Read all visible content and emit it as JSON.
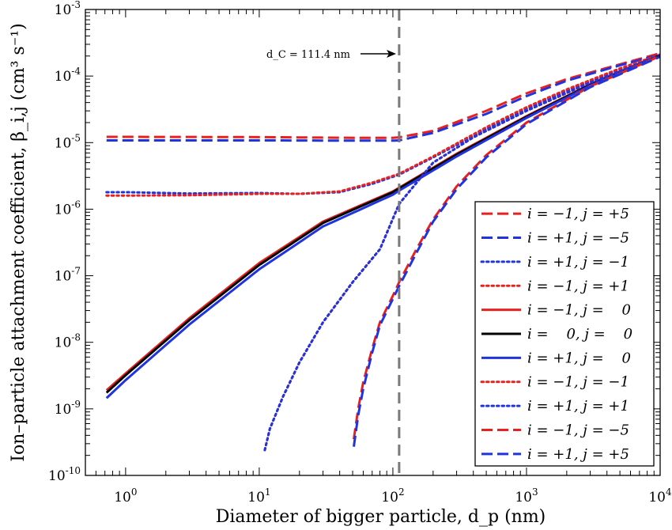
{
  "chart_data": {
    "type": "line",
    "x_scale": "log",
    "y_scale": "log",
    "xlim": [
      0.5,
      10000
    ],
    "ylim": [
      1e-10,
      0.001
    ],
    "xlabel": "Diameter of bigger particle, d_p (nm)",
    "ylabel": "Ion–particle attachment coefficient, β_i,j   (cm³ s⁻¹)",
    "x_ticks": [
      {
        "value": 1,
        "base": "10",
        "exp": "0"
      },
      {
        "value": 10,
        "base": "10",
        "exp": "1"
      },
      {
        "value": 100,
        "base": "10",
        "exp": "2"
      },
      {
        "value": 1000,
        "base": "10",
        "exp": "3"
      },
      {
        "value": 10000,
        "base": "10",
        "exp": "4"
      }
    ],
    "y_ticks": [
      {
        "value": 1e-10,
        "base": "10",
        "exp": "-10"
      },
      {
        "value": 1e-09,
        "base": "10",
        "exp": "-9"
      },
      {
        "value": 1e-08,
        "base": "10",
        "exp": "-8"
      },
      {
        "value": 1e-07,
        "base": "10",
        "exp": "-7"
      },
      {
        "value": 1e-06,
        "base": "10",
        "exp": "-6"
      },
      {
        "value": 1e-05,
        "base": "10",
        "exp": "-5"
      },
      {
        "value": 0.0001,
        "base": "10",
        "exp": "-4"
      },
      {
        "value": 0.001,
        "base": "10",
        "exp": "-3"
      }
    ],
    "grid": false,
    "legend_position": "bottom-right",
    "annotation": {
      "text": "d_C = 111.4 nm",
      "x": 111.4
    },
    "series": [
      {
        "name": "i = −1, j = +5",
        "color": "#e8211f",
        "dash": "dash",
        "x": [
          0.72,
          1,
          10,
          50,
          100,
          111.4,
          200,
          500,
          1000,
          2000,
          5000,
          10000
        ],
        "y": [
          1.22e-05,
          1.22e-05,
          1.21e-05,
          1.18e-05,
          1.18e-05,
          1.2e-05,
          1.5e-05,
          3e-05,
          5.5e-05,
          9e-05,
          0.00015,
          0.00022
        ]
      },
      {
        "name": "i = +1, j = −5",
        "color": "#1f34e0",
        "dash": "dash",
        "x": [
          0.72,
          1,
          10,
          50,
          100,
          111.4,
          200,
          500,
          1000,
          2000,
          5000,
          10000
        ],
        "y": [
          1.08e-05,
          1.08e-05,
          1.08e-05,
          1.07e-05,
          1.07e-05,
          1.08e-05,
          1.4e-05,
          2.7e-05,
          5e-05,
          8.5e-05,
          0.000145,
          0.00021
        ]
      },
      {
        "name": "i = +1, j = −1",
        "color": "#1f34e0",
        "dash": "dot",
        "x": [
          0.72,
          1,
          3,
          10,
          20,
          40,
          70,
          111.4,
          200,
          500,
          1000,
          2000,
          5000,
          10000
        ],
        "y": [
          1.8e-06,
          1.8e-06,
          1.72e-06,
          1.75e-06,
          1.7e-06,
          1.8e-06,
          2.4e-06,
          3.3e-06,
          6e-06,
          1.6e-05,
          3.2e-05,
          6e-05,
          0.000125,
          0.0002
        ]
      },
      {
        "name": "i = −1, j = +1",
        "color": "#e8211f",
        "dash": "dot",
        "x": [
          0.72,
          1,
          3,
          10,
          20,
          40,
          70,
          111.4,
          200,
          500,
          1000,
          2000,
          5000,
          10000
        ],
        "y": [
          1.6e-06,
          1.6e-06,
          1.62e-06,
          1.7e-06,
          1.7e-06,
          1.85e-06,
          2.5e-06,
          3.4e-06,
          6.2e-06,
          1.7e-05,
          3.4e-05,
          6.3e-05,
          0.00013,
          0.00021
        ]
      },
      {
        "name": "i = −1, j =    0",
        "color": "#e8211f",
        "dash": "solid",
        "x": [
          0.72,
          1,
          3,
          10,
          30,
          100,
          111.4,
          300,
          1000,
          3000,
          10000
        ],
        "y": [
          1.9e-09,
          3.4e-09,
          2.3e-08,
          1.55e-07,
          6.5e-07,
          1.85e-06,
          2.1e-06,
          6.8e-06,
          2.5e-05,
          7.5e-05,
          0.00021
        ]
      },
      {
        "name": "i =    0, j =    0",
        "color": "#000000",
        "dash": "solid",
        "x": [
          0.72,
          1,
          3,
          10,
          30,
          100,
          111.4,
          300,
          1000,
          3000,
          10000
        ],
        "y": [
          1.75e-09,
          3.2e-09,
          2.15e-08,
          1.45e-07,
          6.2e-07,
          1.8e-06,
          2.05e-06,
          6.6e-06,
          2.45e-05,
          7.4e-05,
          0.000205
        ]
      },
      {
        "name": "i = +1, j =    0",
        "color": "#1f34e0",
        "dash": "solid",
        "x": [
          0.72,
          1,
          3,
          10,
          30,
          100,
          111.4,
          300,
          1000,
          3000,
          10000
        ],
        "y": [
          1.45e-09,
          2.7e-09,
          1.85e-08,
          1.25e-07,
          5.5e-07,
          1.65e-06,
          1.9e-06,
          6.2e-06,
          2.35e-05,
          7.2e-05,
          0.0002
        ]
      },
      {
        "name": "i = −1, j = −1",
        "color": "#e8211f",
        "dash": "dot",
        "x": [
          11,
          12,
          15,
          20,
          30,
          50,
          80,
          111.4,
          200,
          400,
          1000,
          3000,
          10000
        ],
        "y": [
          2.4e-10,
          5e-10,
          1.5e-09,
          5e-09,
          2e-08,
          8e-08,
          2.5e-07,
          1.2e-06,
          5e-06,
          1.2e-05,
          3e-05,
          8e-05,
          0.000205
        ]
      },
      {
        "name": "i = +1, j = +1",
        "color": "#1f34e0",
        "dash": "dot",
        "x": [
          11,
          12,
          15,
          20,
          30,
          50,
          80,
          111.4,
          200,
          400,
          1000,
          3000,
          10000
        ],
        "y": [
          2.4e-10,
          5e-10,
          1.5e-09,
          5e-09,
          2e-08,
          8e-08,
          2.5e-07,
          1.2e-06,
          5e-06,
          1.2e-05,
          3e-05,
          8e-05,
          0.000205
        ]
      },
      {
        "name": "i = −1, j = −5",
        "color": "#e8211f",
        "dash": "dash",
        "x": [
          51,
          55,
          60,
          70,
          80,
          100,
          111.4,
          150,
          200,
          300,
          500,
          1000,
          3000,
          10000
        ],
        "y": [
          3.5e-10,
          1e-09,
          2.5e-09,
          8e-09,
          2e-08,
          5e-08,
          8e-08,
          2.5e-07,
          7e-07,
          2.2e-06,
          6.5e-06,
          2e-05,
          7e-05,
          0.0002
        ]
      },
      {
        "name": "i = +1, j = +5",
        "color": "#1f34e0",
        "dash": "dash",
        "x": [
          51,
          55,
          60,
          70,
          80,
          100,
          111.4,
          150,
          200,
          300,
          500,
          1000,
          3000,
          10000
        ],
        "y": [
          2.7e-10,
          8e-10,
          2e-09,
          7e-09,
          1.8e-08,
          4.5e-08,
          7e-08,
          2.2e-07,
          6.5e-07,
          2e-06,
          6e-06,
          1.9e-05,
          6.8e-05,
          0.000195
        ]
      }
    ]
  }
}
